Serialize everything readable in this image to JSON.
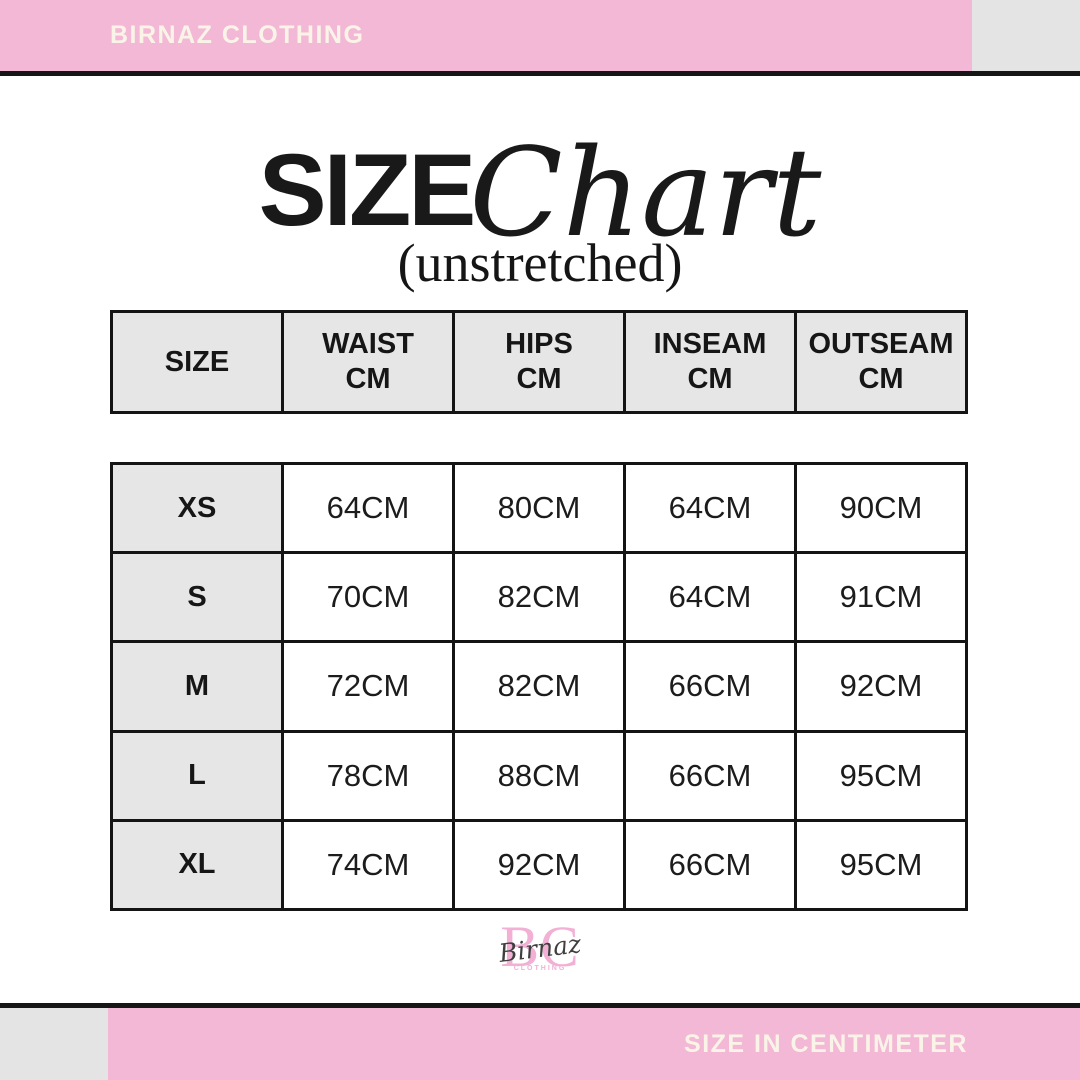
{
  "brand_bar": {
    "label": "BIRNAZ CLOTHING"
  },
  "title": {
    "main": "SIZE",
    "script": "Chart",
    "subtitle": "(unstretched)"
  },
  "chart_data": {
    "type": "table",
    "title": "SIZE Chart",
    "subtitle": "(unstretched)",
    "unit": "CM",
    "columns": [
      [
        "SIZE"
      ],
      [
        "WAIST",
        "CM"
      ],
      [
        "HIPS",
        "CM"
      ],
      [
        "INSEAM",
        "CM"
      ],
      [
        "OUTSEAM",
        "CM"
      ]
    ],
    "rows": [
      {
        "size": "XS",
        "values": [
          "64CM",
          "80CM",
          "64CM",
          "90CM"
        ]
      },
      {
        "size": "S",
        "values": [
          "70CM",
          "82CM",
          "64CM",
          "91CM"
        ]
      },
      {
        "size": "M",
        "values": [
          "72CM",
          "82CM",
          "66CM",
          "92CM"
        ]
      },
      {
        "size": "L",
        "values": [
          "78CM",
          "88CM",
          "66CM",
          "95CM"
        ]
      },
      {
        "size": "XL",
        "values": [
          "74CM",
          "92CM",
          "66CM",
          "95CM"
        ]
      }
    ]
  },
  "logo": {
    "monogram": "BC",
    "script": "Birnaz",
    "sub": "CLOTHING"
  },
  "footer_bar": {
    "label": "SIZE IN CENTIMETER"
  },
  "colors": {
    "pink": "#f2b8d6",
    "pinklogo": "#f2b0d5",
    "cream": "#faf4e8",
    "gray": "#e4e4e4",
    "cellgray": "#e6e6e6",
    "line": "#161616"
  }
}
